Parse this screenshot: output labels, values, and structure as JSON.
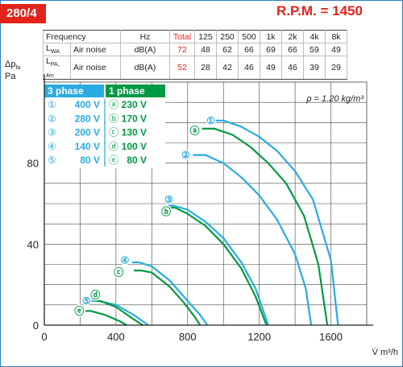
{
  "header": {
    "model": "280/4",
    "rpm": "R.P.M. = 1450"
  },
  "noise_table": {
    "head": [
      "Frequency",
      "Hz",
      "Total",
      "125",
      "250",
      "500",
      "1k",
      "2k",
      "4k",
      "8k"
    ],
    "rows": [
      {
        "sym": "L",
        "sub": "WA",
        "label": "Air noise",
        "unit": "dB(A)",
        "total": "72",
        "values": [
          "48",
          "62",
          "66",
          "69",
          "66",
          "59",
          "49"
        ]
      },
      {
        "sym": "L",
        "sub": "PA, 4m",
        "label": "Air noise",
        "unit": "dB(A)",
        "total": "52",
        "values": [
          "28",
          "42",
          "46",
          "49",
          "46",
          "39",
          "29"
        ]
      }
    ]
  },
  "colors": {
    "three_phase": "#29abe2",
    "one_phase": "#009a44",
    "red": "#e2231a",
    "grid": "#444444"
  },
  "chart_data": {
    "type": "line",
    "xlabel": "V̇ m³/h",
    "ylabel": [
      "Δp",
      "fa",
      "Pa"
    ],
    "xlim": [
      0,
      1800
    ],
    "ylim": [
      0,
      120
    ],
    "xticks": [
      0,
      400,
      800,
      1200,
      1600
    ],
    "yticks": [
      0,
      40,
      80
    ],
    "grid": true,
    "annotation": "ρ = 1.20 kg/m³",
    "legend": {
      "three_phase_title": "3 phase",
      "one_phase_title": "1 phase",
      "three_phase": [
        {
          "symbol": "①",
          "voltage": "400 V"
        },
        {
          "symbol": "②",
          "voltage": "280 V"
        },
        {
          "symbol": "③",
          "voltage": "200 V"
        },
        {
          "symbol": "④",
          "voltage": "140 V"
        },
        {
          "symbol": "⑤",
          "voltage": "80 V"
        }
      ],
      "one_phase": [
        {
          "symbol": "ⓐ",
          "voltage": "230 V"
        },
        {
          "symbol": "ⓑ",
          "voltage": "170 V"
        },
        {
          "symbol": "ⓒ",
          "voltage": "130 V"
        },
        {
          "symbol": "ⓓ",
          "voltage": "100 V"
        },
        {
          "symbol": "ⓔ",
          "voltage": "80 V"
        }
      ]
    },
    "series": [
      {
        "name": "①",
        "phase": "3",
        "points": [
          [
            920,
            101
          ],
          [
            1000,
            101
          ],
          [
            1100,
            98
          ],
          [
            1200,
            93
          ],
          [
            1300,
            86
          ],
          [
            1400,
            76
          ],
          [
            1500,
            62
          ],
          [
            1600,
            32
          ],
          [
            1640,
            0
          ]
        ]
      },
      {
        "name": "ⓐ",
        "phase": "1",
        "points": [
          [
            880,
            97
          ],
          [
            950,
            97
          ],
          [
            1050,
            94
          ],
          [
            1150,
            88
          ],
          [
            1250,
            80
          ],
          [
            1350,
            70
          ],
          [
            1450,
            54
          ],
          [
            1530,
            30
          ],
          [
            1580,
            0
          ]
        ]
      },
      {
        "name": "②",
        "phase": "3",
        "points": [
          [
            830,
            84
          ],
          [
            900,
            84
          ],
          [
            1000,
            80
          ],
          [
            1100,
            73
          ],
          [
            1200,
            64
          ],
          [
            1300,
            52
          ],
          [
            1400,
            35
          ],
          [
            1460,
            18
          ],
          [
            1490,
            0
          ]
        ]
      },
      {
        "name": "③",
        "phase": "3",
        "points": [
          [
            690,
            59
          ],
          [
            720,
            59
          ],
          [
            800,
            57
          ],
          [
            900,
            51
          ],
          [
            1000,
            43
          ],
          [
            1100,
            31
          ],
          [
            1180,
            18
          ],
          [
            1250,
            0
          ]
        ]
      },
      {
        "name": "ⓑ",
        "phase": "1",
        "points": [
          [
            700,
            58
          ],
          [
            730,
            58
          ],
          [
            800,
            55
          ],
          [
            900,
            49
          ],
          [
            1000,
            40
          ],
          [
            1100,
            28
          ],
          [
            1180,
            14
          ],
          [
            1240,
            0
          ]
        ]
      },
      {
        "name": "④",
        "phase": "3",
        "points": [
          [
            490,
            31
          ],
          [
            530,
            31
          ],
          [
            600,
            29
          ],
          [
            700,
            22
          ],
          [
            800,
            12
          ],
          [
            870,
            5
          ],
          [
            910,
            0
          ]
        ]
      },
      {
        "name": "ⓒ",
        "phase": "1",
        "points": [
          [
            500,
            27
          ],
          [
            540,
            27
          ],
          [
            600,
            26
          ],
          [
            700,
            19
          ],
          [
            780,
            11
          ],
          [
            840,
            4
          ],
          [
            870,
            0
          ]
        ]
      },
      {
        "name": "⑤",
        "phase": "3",
        "points": [
          [
            260,
            12
          ],
          [
            300,
            12
          ],
          [
            400,
            10
          ],
          [
            500,
            5
          ],
          [
            580,
            0
          ]
        ]
      },
      {
        "name": "ⓓ",
        "phase": "1",
        "points": [
          [
            280,
            12
          ],
          [
            310,
            12
          ],
          [
            400,
            9
          ],
          [
            480,
            4
          ],
          [
            550,
            0
          ]
        ]
      },
      {
        "name": "ⓔ",
        "phase": "1",
        "points": [
          [
            230,
            7
          ],
          [
            260,
            7
          ],
          [
            340,
            5
          ],
          [
            420,
            2
          ],
          [
            460,
            0
          ]
        ]
      }
    ],
    "curve_labels": [
      {
        "symbol": "①",
        "phase": "3",
        "x": 930,
        "y": 101
      },
      {
        "symbol": "ⓐ",
        "phase": "1",
        "x": 840,
        "y": 96
      },
      {
        "symbol": "②",
        "phase": "3",
        "x": 790,
        "y": 84
      },
      {
        "symbol": "③",
        "phase": "3",
        "x": 695,
        "y": 62
      },
      {
        "symbol": "ⓑ",
        "phase": "1",
        "x": 680,
        "y": 56
      },
      {
        "symbol": "④",
        "phase": "3",
        "x": 450,
        "y": 32
      },
      {
        "symbol": "ⓒ",
        "phase": "1",
        "x": 415,
        "y": 26
      },
      {
        "symbol": "⑤",
        "phase": "3",
        "x": 235,
        "y": 12
      },
      {
        "symbol": "ⓓ",
        "phase": "1",
        "x": 285,
        "y": 15
      },
      {
        "symbol": "ⓔ",
        "phase": "1",
        "x": 195,
        "y": 7
      }
    ]
  }
}
